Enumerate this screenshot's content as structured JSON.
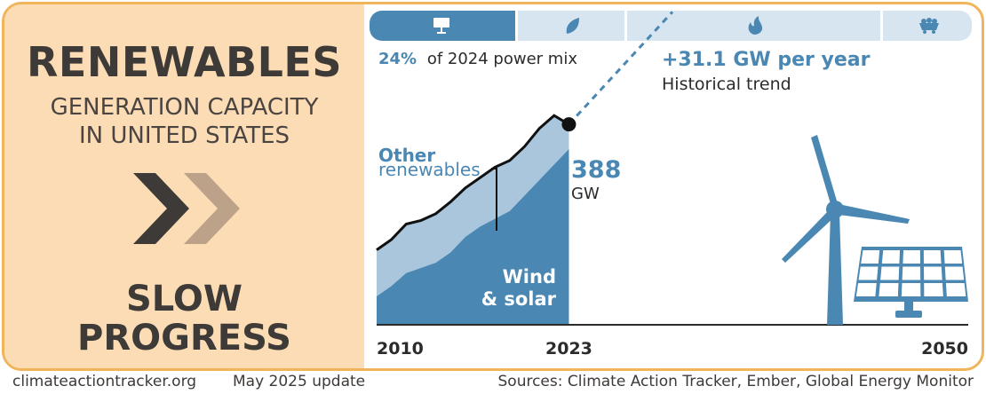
{
  "left_panel": {
    "title": "RENEWABLES",
    "subtitle_line1": "GENERATION CAPACITY",
    "subtitle_line2": "IN UNITED STATES",
    "status_line1": "SLOW",
    "status_line2": "PROGRESS"
  },
  "tabs": [
    {
      "icon": "solar-panel-icon",
      "active": true
    },
    {
      "icon": "leaf-icon",
      "active": false
    },
    {
      "icon": "flame-icon",
      "active": false
    },
    {
      "icon": "coal-cart-icon",
      "active": false
    }
  ],
  "share": {
    "value": "24%",
    "text": "of 2024 power mix"
  },
  "trend": {
    "value": "+31.1 GW per year",
    "label": "Historical trend"
  },
  "current": {
    "value": "388",
    "unit": "GW"
  },
  "labels": {
    "other_line1": "Other",
    "other_line2": "renewables",
    "ws_line1": "Wind",
    "ws_line2": "& solar"
  },
  "colors": {
    "accent_blue": "#4a87b3",
    "light_blue": "#a9c6dd",
    "panel_orange": "#fbdcb4",
    "border_orange": "#f0b55a",
    "dark": "#3d3a38"
  },
  "chart_data": {
    "type": "area",
    "x": [
      2010,
      2011,
      2012,
      2013,
      2014,
      2015,
      2016,
      2017,
      2018,
      2019,
      2020,
      2021,
      2022,
      2023
    ],
    "series": [
      {
        "name": "Wind & solar",
        "values": [
          55,
          75,
          100,
          110,
          120,
          140,
          170,
          190,
          205,
          220,
          250,
          280,
          310,
          340
        ]
      },
      {
        "name": "Other renewables",
        "values": [
          90,
          90,
          95,
          92,
          95,
          98,
          95,
          95,
          100,
          98,
          95,
          100,
          95,
          48
        ]
      }
    ],
    "total_line": [
      145,
      165,
      195,
      202,
      215,
      238,
      265,
      285,
      305,
      318,
      345,
      380,
      405,
      388
    ],
    "trend_end_year": 2030,
    "x_ticks": [
      "2010",
      "2023",
      "2050"
    ],
    "xlim": [
      2010,
      2050
    ],
    "ylim": [
      0,
      560
    ]
  },
  "footer": {
    "site": "climateactiontracker.org",
    "date": "May 2025 update",
    "sources": "Sources: Climate Action Tracker, Ember, Global Energy Monitor"
  }
}
